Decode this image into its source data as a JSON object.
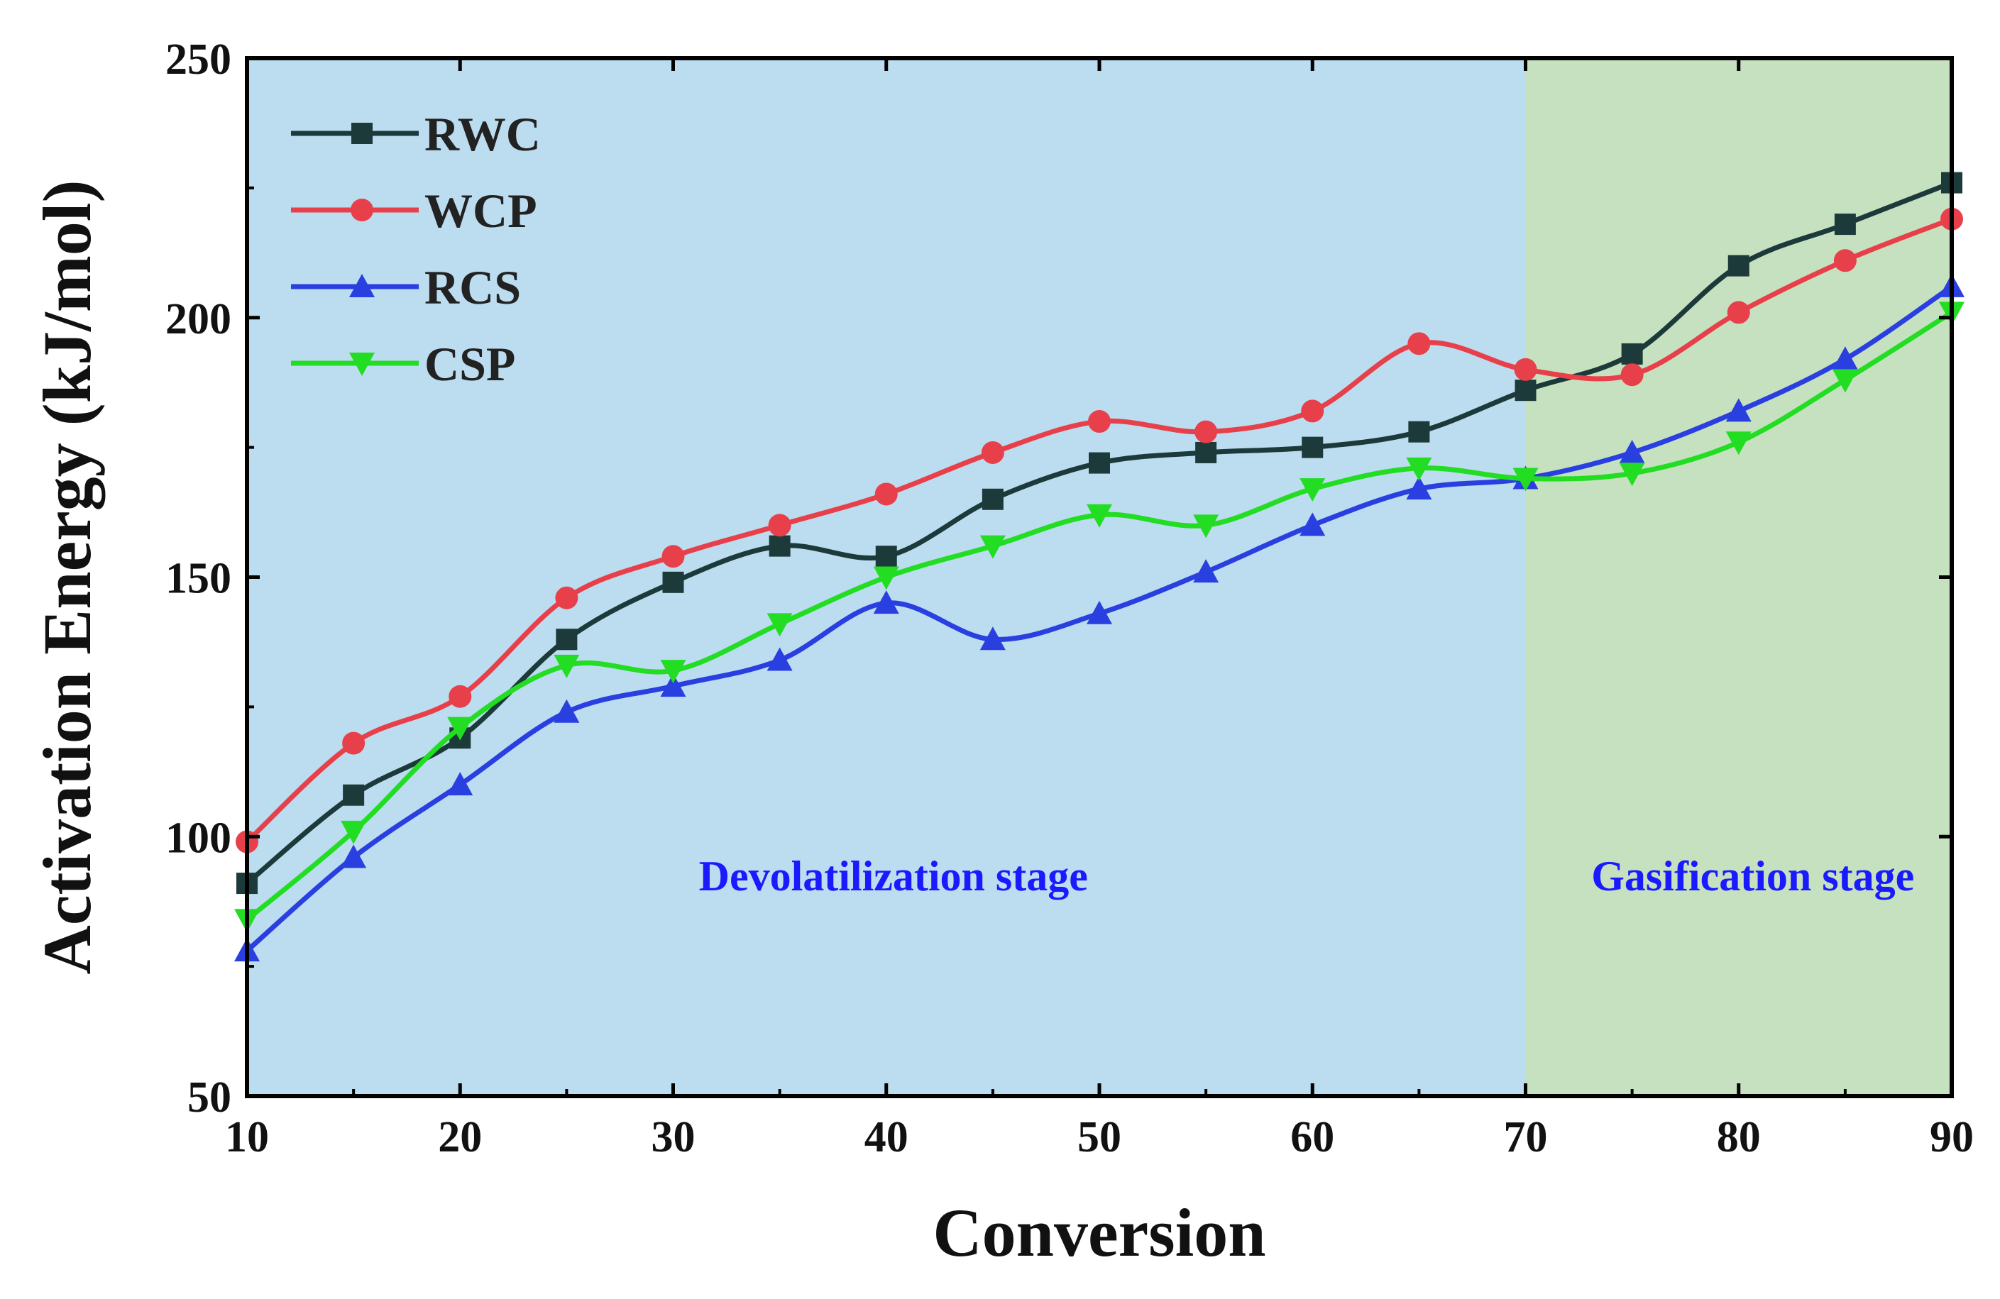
{
  "chart_data": {
    "type": "line",
    "title": "",
    "xlabel": "Conversion",
    "ylabel": "Activation Energy (kJ/mol)",
    "xlim": [
      10,
      90
    ],
    "ylim": [
      50,
      250
    ],
    "xticks": [
      10,
      20,
      30,
      40,
      50,
      60,
      70,
      80,
      90
    ],
    "yticks": [
      50,
      100,
      150,
      200,
      250
    ],
    "x": [
      10,
      15,
      20,
      25,
      30,
      35,
      40,
      45,
      50,
      55,
      60,
      65,
      70,
      75,
      80,
      85,
      90
    ],
    "regions": [
      {
        "name": "Devolatilization stage",
        "x_start": 10,
        "x_end": 70,
        "color": "#bcdcf0"
      },
      {
        "name": "Gasification stage",
        "x_start": 70,
        "x_end": 90,
        "color": "#c6e1c0"
      }
    ],
    "series": [
      {
        "name": "RWC",
        "color": "#1c3a3a",
        "marker": "square",
        "values": [
          91,
          108,
          119,
          138,
          149,
          156,
          154,
          165,
          172,
          174,
          175,
          178,
          186,
          193,
          210,
          218,
          226
        ]
      },
      {
        "name": "WCP",
        "color": "#e8404a",
        "marker": "circle",
        "values": [
          99,
          118,
          127,
          146,
          154,
          160,
          166,
          174,
          180,
          178,
          182,
          195,
          190,
          189,
          201,
          211,
          219
        ]
      },
      {
        "name": "RCS",
        "color": "#2a3fe0",
        "marker": "triangle-up",
        "values": [
          78,
          96,
          110,
          124,
          129,
          134,
          145,
          138,
          143,
          151,
          160,
          167,
          169,
          174,
          182,
          192,
          206
        ]
      },
      {
        "name": "CSP",
        "color": "#22dd22",
        "marker": "triangle-down",
        "values": [
          84,
          101,
          121,
          133,
          132,
          141,
          150,
          156,
          162,
          160,
          167,
          171,
          169,
          170,
          176,
          188,
          201
        ]
      }
    ],
    "legend_position": "top-left",
    "grid": false
  }
}
